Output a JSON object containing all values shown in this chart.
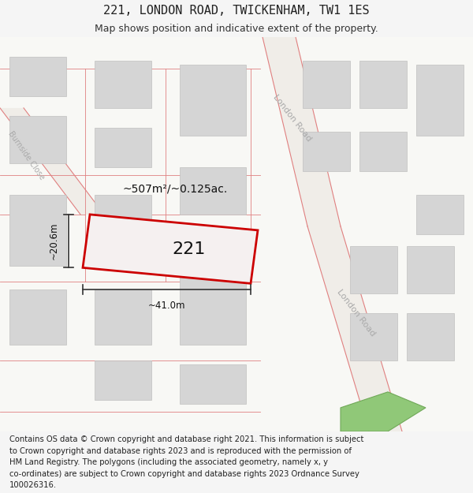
{
  "title": "221, LONDON ROAD, TWICKENHAM, TW1 1ES",
  "subtitle": "Map shows position and indicative extent of the property.",
  "footer_lines": [
    "Contains OS data © Crown copyright and database right 2021. This information is subject",
    "to Crown copyright and database rights 2023 and is reproduced with the permission of",
    "HM Land Registry. The polygons (including the associated geometry, namely x, y",
    "co-ordinates) are subject to Crown copyright and database rights 2023 Ordnance Survey",
    "100026316."
  ],
  "bg_color": "#f5f5f5",
  "map_bg": "#ffffff",
  "title_fontsize": 11,
  "subtitle_fontsize": 9,
  "footer_fontsize": 7.2,
  "area_label": "~507m²/~0.125ac.",
  "width_label": "~41.0m",
  "height_label": "~20.6m",
  "property_number": "221",
  "road_label_1": "London Road",
  "road_label_2": "London Road",
  "street_label": "Burnside Close",
  "road_color": "#e08080",
  "building_fill": "#d5d5d5",
  "building_edge": "#c0c0c0",
  "property_edge": "#cc0000",
  "property_fill": "#f5f0f0",
  "dim_color": "#333333",
  "label_color": "#111111",
  "road_text_color": "#aaaaaa",
  "green_fill": "#90c878",
  "green_edge": "#70a858"
}
